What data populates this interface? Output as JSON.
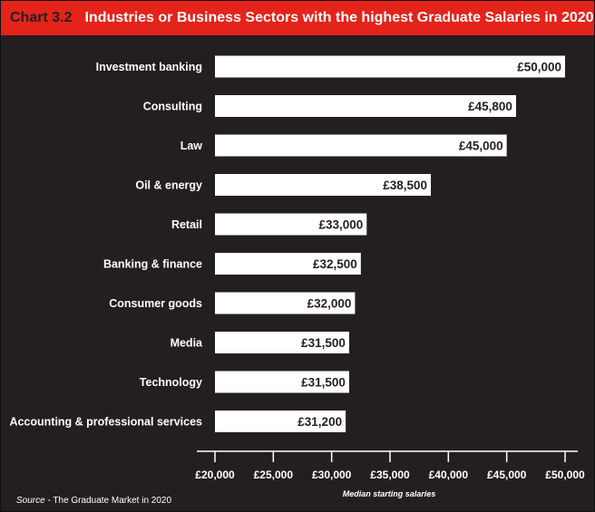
{
  "header": {
    "chart_label": "Chart 3.2",
    "title": "Industries or Business Sectors with the highest Graduate Salaries in 2020"
  },
  "source": {
    "label": "Source",
    "text": " - The Graduate Market in 2020"
  },
  "colors": {
    "background": "#231f20",
    "title_bar": "#e4231a",
    "bar": "#ffffff",
    "text": "#ffffff",
    "value_text": "#231f20"
  },
  "chart_data": {
    "type": "bar",
    "orientation": "horizontal",
    "categories": [
      "Investment banking",
      "Consulting",
      "Law",
      "Oil & energy",
      "Retail",
      "Banking & finance",
      "Consumer goods",
      "Media",
      "Technology",
      "Accounting & professional services"
    ],
    "values": [
      50000,
      45800,
      45000,
      38500,
      33000,
      32500,
      32000,
      31500,
      31500,
      31200
    ],
    "value_labels": [
      "£50,000",
      "£45,800",
      "£45,000",
      "£38,500",
      "£33,000",
      "£32,500",
      "£32,000",
      "£31,500",
      "£31,500",
      "£31,200"
    ],
    "xlabel": "Median starting salaries",
    "xlim": [
      20000,
      50000
    ],
    "xticks": [
      20000,
      25000,
      30000,
      35000,
      40000,
      45000,
      50000
    ],
    "xtick_labels": [
      "£20,000",
      "£25,000",
      "£30,000",
      "£35,000",
      "£40,000",
      "£45,000",
      "£50,000"
    ],
    "grid": false,
    "legend": "none"
  }
}
